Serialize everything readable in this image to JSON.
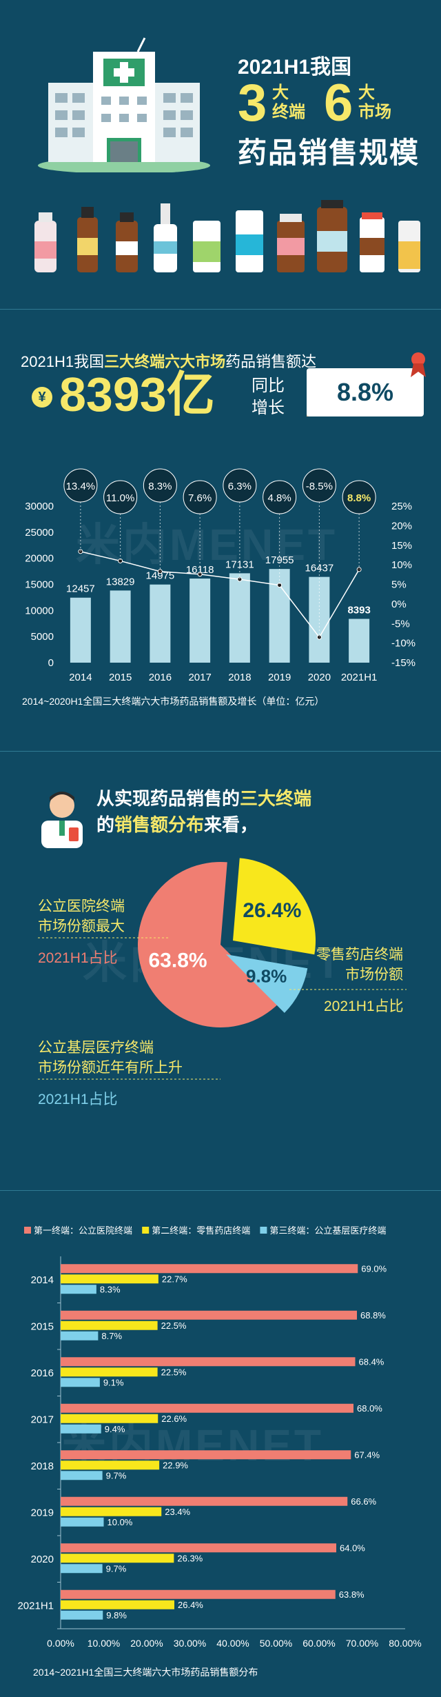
{
  "hero": {
    "year_prefix": "2021H1我国",
    "num3": "3",
    "small3_top": "大",
    "small3_bottom": "终端",
    "num6": "6",
    "small6_top": "大",
    "small6_bottom": "市场",
    "title": "药品销售规模"
  },
  "kv": {
    "line_prefix": "2021H1我国",
    "line_highlight": "三大终端六大市场",
    "line_suffix": "药品销售额达",
    "yen_symbol": "¥",
    "amount": "8393亿",
    "growth_label_1": "同比",
    "growth_label_2": "增长",
    "growth_value": "8.8%"
  },
  "sales_chart": {
    "caption": "2014~2020H1全国三大终端六大市场药品销售额及增长（单位：亿元）",
    "watermark": "米内MENET"
  },
  "share": {
    "question_line1_prefix": "从实现药品销售的",
    "question_line1_highlight": "三大终端",
    "question_line2_prefix": "的",
    "question_line2_highlight": "销售额分布",
    "question_line2_suffix": "来看，",
    "hospital_label_1": "公立医院终端",
    "hospital_label_2": "市场份额最大",
    "hospital_sub": "2021H1占比",
    "retail_label_1": "零售药店终端",
    "retail_label_2": "市场份额",
    "retail_sub": "2021H1占比",
    "primary_label_1": "公立基层医疗终端",
    "primary_label_2": "市场份额近年有所上升",
    "primary_sub": "2021H1占比",
    "watermark": "米内MENET"
  },
  "dist_chart": {
    "caption": "2014~2021H1全国三大终端六大市场药品销售额分布",
    "watermark": "米内MENET"
  },
  "colors": {
    "background": "#0f4a63",
    "accent_yellow": "#f6e86a",
    "bar_light_blue": "#b5dde8",
    "hospital": "#f07e72",
    "retail": "#f8e71c",
    "primary": "#7fd0ea"
  },
  "chart_data": [
    {
      "type": "bar",
      "categories": [
        "2014",
        "2015",
        "2016",
        "2017",
        "2018",
        "2019",
        "2020",
        "2021H1"
      ],
      "series": [
        {
          "values": [
            12457,
            13829,
            14975,
            16118,
            17131,
            17955,
            16437,
            8393
          ],
          "axis": "left",
          "kind": "bar"
        },
        {
          "values": [
            13.4,
            11.0,
            8.3,
            7.6,
            6.3,
            4.8,
            -8.5,
            8.8
          ],
          "axis": "right",
          "kind": "line",
          "unit": "%"
        }
      ],
      "growth_labels": [
        "13.4%",
        "11.0%",
        "8.3%",
        "7.6%",
        "6.3%",
        "4.8%",
        "-8.5%",
        "8.8%"
      ],
      "ylim": [
        0,
        30000
      ],
      "yticks": [
        "0",
        "5000",
        "10000",
        "15000",
        "20000",
        "25000",
        "30000"
      ],
      "y2lim": [
        -15,
        25
      ],
      "y2ticks": [
        "-15%",
        "-10%",
        "-5%",
        "0%",
        "5%",
        "10%",
        "15%",
        "20%",
        "25%"
      ],
      "title": "",
      "xlabel": "",
      "ylabel": ""
    },
    {
      "type": "pie",
      "categories": [
        "公立医院终端",
        "零售药店终端",
        "公立基层医疗终端"
      ],
      "values": [
        63.8,
        26.4,
        9.8
      ],
      "labels": [
        "63.8%",
        "26.4%",
        "9.8%"
      ]
    },
    {
      "type": "bar",
      "orientation": "horizontal",
      "categories": [
        "2014",
        "2015",
        "2016",
        "2017",
        "2018",
        "2019",
        "2020",
        "2021H1"
      ],
      "series": [
        {
          "name": "第一终端：公立医院终端",
          "values": [
            69.0,
            68.8,
            68.4,
            68.0,
            67.4,
            66.6,
            64.0,
            63.8
          ]
        },
        {
          "name": "第二终端：零售药店终端",
          "values": [
            22.7,
            22.5,
            22.5,
            22.6,
            22.9,
            23.4,
            26.3,
            26.4
          ]
        },
        {
          "name": "第三终端：公立基层医疗终端",
          "values": [
            8.3,
            8.7,
            9.1,
            9.4,
            9.7,
            10.0,
            9.7,
            9.8
          ]
        }
      ],
      "xlim": [
        0,
        80
      ],
      "xticks": [
        "0.00%",
        "10.00%",
        "20.00%",
        "30.00%",
        "40.00%",
        "50.00%",
        "60.00%",
        "70.00%",
        "80.00%"
      ],
      "legend": "top",
      "title": "",
      "xlabel": "",
      "ylabel": ""
    }
  ]
}
